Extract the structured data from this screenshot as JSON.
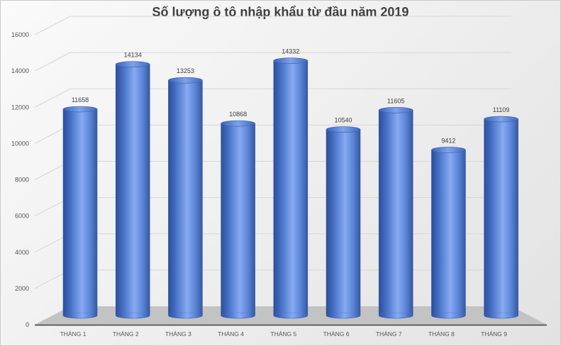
{
  "chart_data": {
    "type": "bar",
    "style": "3d-cylinder",
    "title": "Số lượng ô tô nhập khẩu từ đầu năm 2019",
    "xlabel": "",
    "ylabel": "",
    "categories": [
      "THÁNG 1",
      "THÁNG 2",
      "THÁNG 3",
      "THÁNG 4",
      "THÁNG 5",
      "THÁNG 6",
      "THÁNG 7",
      "THÁNG 8",
      "THÁNG 9"
    ],
    "values": [
      11658,
      14134,
      13253,
      10868,
      14332,
      10540,
      11605,
      9412,
      11109
    ],
    "data_labels": [
      "11658",
      "14134",
      "13253",
      "10868",
      "14332",
      "10540",
      "11605",
      "9412",
      "11109"
    ],
    "y_ticks": [
      "0",
      "2000",
      "4000",
      "6000",
      "8000",
      "10000",
      "12000",
      "14000",
      "16000"
    ],
    "ylim": [
      0,
      16000
    ],
    "grid": true,
    "legend": null,
    "bar_color": "#4a74cc"
  }
}
